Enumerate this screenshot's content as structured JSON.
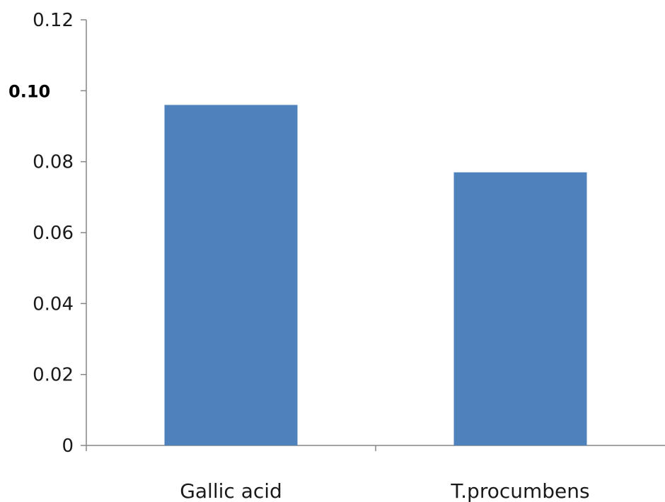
{
  "chart_data": {
    "type": "bar",
    "categories": [
      "Gallic acid",
      "T.procumbens"
    ],
    "series": [
      {
        "values": [
          0.096,
          0.077
        ]
      }
    ],
    "ylim": [
      0,
      0.12
    ],
    "yticks": [
      {
        "value": 0,
        "label": "0"
      },
      {
        "value": 0.02,
        "label": "0.02"
      },
      {
        "value": 0.04,
        "label": "0.04"
      },
      {
        "value": 0.06,
        "label": "0.06"
      },
      {
        "value": 0.08,
        "label": "0.08"
      },
      {
        "value": 0.1,
        "label": "0.10"
      },
      {
        "value": 0.12,
        "label": "0.12"
      }
    ],
    "title": "",
    "xlabel": "",
    "ylabel": "",
    "grid": false,
    "legend": "none",
    "colors": {
      "bar": "#4f81bd",
      "axis": "#868686",
      "text": "#1a1a1a"
    }
  }
}
